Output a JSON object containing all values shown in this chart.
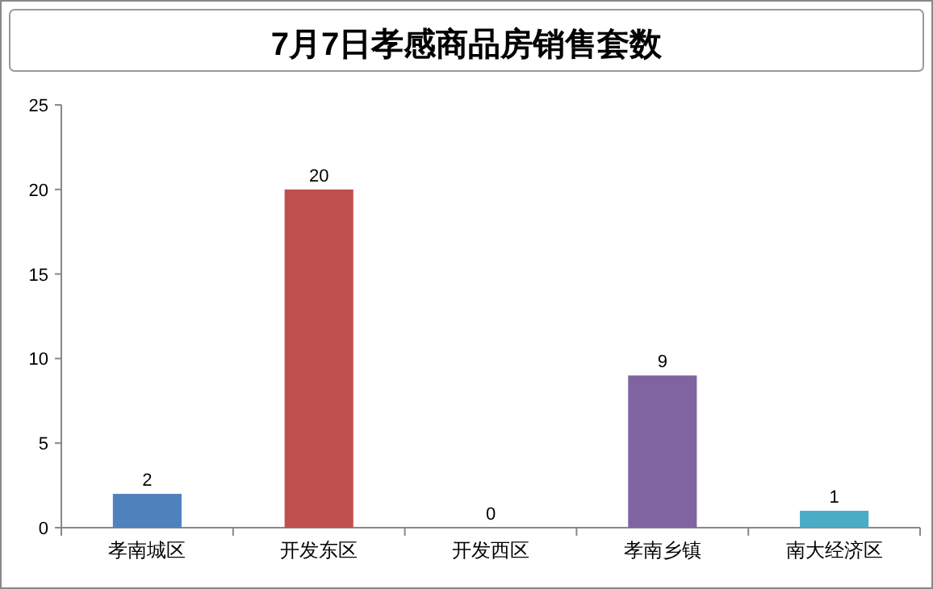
{
  "chart_data": {
    "type": "bar",
    "title": "7月7日孝感商品房销售套数",
    "categories": [
      "孝南城区",
      "开发东区",
      "开发西区",
      "孝南乡镇",
      "南大经济区"
    ],
    "values": [
      2,
      20,
      0,
      9,
      1
    ],
    "colors": [
      "#4f81bd",
      "#c0504d",
      "#9bbb59",
      "#8064a2",
      "#4bacc6"
    ],
    "ylim": [
      0,
      25
    ],
    "yticks": [
      0,
      5,
      10,
      15,
      20,
      25
    ],
    "grid": false,
    "data_labels": true
  }
}
